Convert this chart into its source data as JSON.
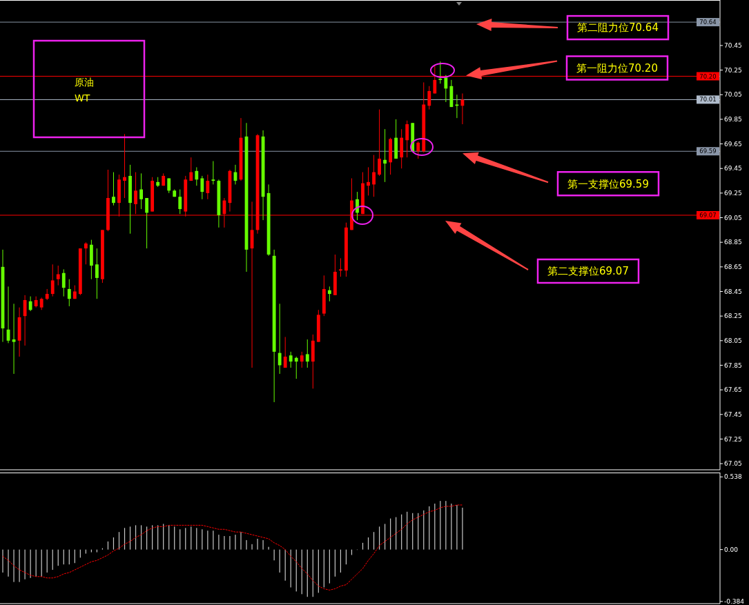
{
  "chart_data": [
    {
      "type": "candlestick",
      "title": "原油",
      "subtitle": "WT",
      "categories": [
        null,
        null,
        null,
        null,
        null,
        null,
        null,
        null,
        null,
        null,
        null,
        null,
        null,
        null,
        null,
        null,
        null,
        null,
        null,
        null,
        null,
        null,
        null,
        null,
        null,
        null,
        null,
        null,
        null,
        null,
        null,
        null,
        null,
        null,
        null,
        null,
        null,
        null,
        null,
        null,
        null,
        null,
        null,
        null,
        null,
        null,
        null,
        null,
        null,
        null,
        null,
        null,
        null,
        null,
        null,
        null,
        null,
        null,
        null,
        null,
        null,
        null,
        null,
        null,
        null,
        null,
        null,
        null,
        null,
        null,
        null,
        null,
        null,
        null,
        null,
        null,
        null,
        null,
        null,
        null,
        null,
        null,
        null,
        null,
        null,
        null,
        null,
        null,
        null,
        null,
        null,
        null,
        null,
        null,
        null,
        null,
        null,
        null,
        null,
        null,
        null,
        null,
        null,
        null,
        null,
        null,
        null,
        null,
        null,
        null,
        null,
        null,
        null,
        null,
        null,
        null,
        null,
        null,
        null,
        null,
        null,
        null,
        null,
        null,
        null,
        null,
        null,
        null,
        null,
        null
      ],
      "ylim": [
        67.0,
        70.82
      ],
      "yticks": [
        67.05,
        67.25,
        67.45,
        67.65,
        67.85,
        68.05,
        68.25,
        68.45,
        68.65,
        68.85,
        69.05,
        69.25,
        69.45,
        69.65,
        69.85,
        70.05,
        70.25,
        70.45
      ],
      "ohlc": [
        [
          68.65,
          68.79,
          68.04,
          68.15
        ],
        [
          68.14,
          68.49,
          68.03,
          68.05
        ],
        [
          68.06,
          68.35,
          67.78,
          68.04
        ],
        [
          68.05,
          68.32,
          67.92,
          68.24
        ],
        [
          68.25,
          68.42,
          68.01,
          68.38
        ],
        [
          68.37,
          68.41,
          68.29,
          68.3
        ],
        [
          68.33,
          68.41,
          68.32,
          68.38
        ],
        [
          68.32,
          68.4,
          68.3,
          68.39
        ],
        [
          68.39,
          68.47,
          68.38,
          68.43
        ],
        [
          68.43,
          68.67,
          68.41,
          68.54
        ],
        [
          68.55,
          68.66,
          68.5,
          68.59
        ],
        [
          68.6,
          68.63,
          68.41,
          68.48
        ],
        [
          68.47,
          68.55,
          68.33,
          68.39
        ],
        [
          68.39,
          68.5,
          68.39,
          68.45
        ],
        [
          68.43,
          68.8,
          68.42,
          68.8
        ],
        [
          68.8,
          68.85,
          68.67,
          68.84
        ],
        [
          68.83,
          68.87,
          68.55,
          68.66
        ],
        [
          68.67,
          68.8,
          68.39,
          68.56
        ],
        [
          68.55,
          68.95,
          68.52,
          68.95
        ],
        [
          68.95,
          69.44,
          68.94,
          69.21
        ],
        [
          69.22,
          69.42,
          69.15,
          69.17
        ],
        [
          69.17,
          69.4,
          69.06,
          69.36
        ],
        [
          69.35,
          69.73,
          69.21,
          69.38
        ],
        [
          69.39,
          69.48,
          68.92,
          69.17
        ],
        [
          69.16,
          69.42,
          69.08,
          69.27
        ],
        [
          69.28,
          69.41,
          69.12,
          69.2
        ],
        [
          69.21,
          69.21,
          68.8,
          69.09
        ],
        [
          69.1,
          69.38,
          69.1,
          69.35
        ],
        [
          69.34,
          69.38,
          69.3,
          69.31
        ],
        [
          69.31,
          69.41,
          69.31,
          69.39
        ],
        [
          69.37,
          69.37,
          69.25,
          69.27
        ],
        [
          69.27,
          69.28,
          69.22,
          69.22
        ],
        [
          69.22,
          69.28,
          69.08,
          69.12
        ],
        [
          69.1,
          69.39,
          69.06,
          69.36
        ],
        [
          69.35,
          69.54,
          69.35,
          69.42
        ],
        [
          69.43,
          69.46,
          69.31,
          69.36
        ],
        [
          69.37,
          69.39,
          69.2,
          69.26
        ],
        [
          69.25,
          69.4,
          69.2,
          69.35
        ],
        [
          69.36,
          69.51,
          69.32,
          69.35
        ],
        [
          69.35,
          69.36,
          68.97,
          69.07
        ],
        [
          69.08,
          69.21,
          68.97,
          69.19
        ],
        [
          69.17,
          69.44,
          69.1,
          69.43
        ],
        [
          69.42,
          69.48,
          69.32,
          69.35
        ],
        [
          69.36,
          69.86,
          69.35,
          69.7
        ],
        [
          69.71,
          69.82,
          68.61,
          68.79
        ],
        [
          68.8,
          69.18,
          67.83,
          68.95
        ],
        [
          68.95,
          69.73,
          68.92,
          69.72
        ],
        [
          69.71,
          69.76,
          69.03,
          69.22
        ],
        [
          69.25,
          69.32,
          68.74,
          68.75
        ],
        [
          68.74,
          68.79,
          67.55,
          67.96
        ],
        [
          67.95,
          68.35,
          67.78,
          67.85
        ],
        [
          67.83,
          68.08,
          67.83,
          67.92
        ],
        [
          67.93,
          67.96,
          67.83,
          67.88
        ],
        [
          67.91,
          67.92,
          67.74,
          67.88
        ],
        [
          67.88,
          67.96,
          67.83,
          67.93
        ],
        [
          67.94,
          68.06,
          67.83,
          67.88
        ],
        [
          67.88,
          68.1,
          67.66,
          68.05
        ],
        [
          68.04,
          68.3,
          68.04,
          68.26
        ],
        [
          68.27,
          68.58,
          68.25,
          68.47
        ],
        [
          68.46,
          68.49,
          68.37,
          68.43
        ],
        [
          68.42,
          68.75,
          68.42,
          68.61
        ],
        [
          68.62,
          68.72,
          68.57,
          68.63
        ],
        [
          68.62,
          69.01,
          68.57,
          68.97
        ],
        [
          68.95,
          69.37,
          68.95,
          69.19
        ],
        [
          69.2,
          69.26,
          69.03,
          69.09
        ],
        [
          69.08,
          69.42,
          69.08,
          69.33
        ],
        [
          69.31,
          69.46,
          69.23,
          69.34
        ],
        [
          69.32,
          69.56,
          69.22,
          69.42
        ],
        [
          69.4,
          69.93,
          69.39,
          69.53
        ],
        [
          69.52,
          69.77,
          69.34,
          69.49
        ],
        [
          69.5,
          69.7,
          69.4,
          69.69
        ],
        [
          69.7,
          69.85,
          69.53,
          69.53
        ],
        [
          69.54,
          69.77,
          69.45,
          69.7
        ],
        [
          69.68,
          69.84,
          69.54,
          69.81
        ],
        [
          69.82,
          69.82,
          69.59,
          69.59
        ],
        [
          69.59,
          69.67,
          69.53,
          69.66
        ],
        [
          69.59,
          70.15,
          69.58,
          69.97
        ],
        [
          69.96,
          70.12,
          69.93,
          70.08
        ],
        [
          70.06,
          70.29,
          70.06,
          70.17
        ],
        [
          70.18,
          70.32,
          70.14,
          70.17
        ],
        [
          70.19,
          70.21,
          69.99,
          70.1
        ],
        [
          70.12,
          70.17,
          69.95,
          69.95
        ],
        [
          69.97,
          70.05,
          69.86,
          69.96
        ],
        [
          69.96,
          70.06,
          69.81,
          70.01
        ],
        null,
        null,
        null,
        null,
        null,
        null,
        null,
        null,
        null,
        null,
        null,
        null,
        null,
        null,
        null,
        null,
        null,
        null,
        null,
        null,
        null,
        null,
        null,
        null,
        null,
        null,
        null,
        null,
        null,
        null,
        null,
        null,
        null,
        null,
        null,
        null,
        null,
        null,
        null,
        null,
        null,
        null,
        null,
        null,
        null,
        null
      ],
      "colors": [
        "#66ff00",
        "#66ff00",
        "#66ff00",
        "#ff0000",
        "#ff0000",
        "#66ff00",
        "#ff0000",
        "#ff0000",
        "#ff0000",
        "#ff0000",
        "#ff0000",
        "#66ff00",
        "#66ff00",
        "#ff0000",
        "#ff0000",
        "#ff0000",
        "#66ff00",
        "#66ff00",
        "#ff0000",
        "#ff0000",
        "#66ff00",
        "#ff0000",
        "#ff0000",
        "#66ff00",
        "#ff0000",
        "#66ff00",
        "#66ff00",
        "#ff0000",
        "#66ff00",
        "#ff0000",
        "#66ff00",
        "#66ff00",
        "#66ff00",
        "#ff0000",
        "#ff0000",
        "#66ff00",
        "#66ff00",
        "#ff0000",
        "#66ff00",
        "#66ff00",
        "#ff0000",
        "#ff0000",
        "#66ff00",
        "#ff0000",
        "#66ff00",
        "#ff0000",
        "#ff0000",
        "#66ff00",
        "#66ff00",
        "#66ff00",
        "#66ff00",
        "#ff0000",
        "#66ff00",
        "#66ff00",
        "#ff0000",
        "#66ff00",
        "#ff0000",
        "#ff0000",
        "#ff0000",
        "#66ff00",
        "#ff0000",
        "#ff0000",
        "#ff0000",
        "#ff0000",
        "#66ff00",
        "#ff0000",
        "#ff0000",
        "#ff0000",
        "#ff0000",
        "#66ff00",
        "#ff0000",
        "#66ff00",
        "#ff0000",
        "#ff0000",
        "#66ff00",
        "#ff0000",
        "#ff0000",
        "#ff0000",
        "#ff0000",
        "#66ff00",
        "#66ff00",
        "#66ff00",
        "#66ff00",
        "#ff0000",
        null,
        null,
        null,
        null,
        null,
        null,
        null,
        null,
        null,
        null,
        null,
        null,
        null,
        null,
        null,
        null,
        null,
        null,
        null,
        null,
        null,
        null,
        null,
        null,
        null,
        null,
        null,
        null,
        null,
        null,
        null,
        null,
        null,
        null,
        null,
        null,
        null,
        null,
        null,
        null,
        null,
        null,
        null,
        null,
        null,
        null
      ],
      "ref_lines": [
        {
          "axis": "y",
          "value": 70.64,
          "label": "70.64",
          "color": "#8a96a8"
        },
        {
          "axis": "y",
          "value": 70.2,
          "label": "70.20",
          "color": "#ff0000"
        },
        {
          "axis": "y",
          "value": 70.01,
          "label": "70.01",
          "color": "#b0bccc"
        },
        {
          "axis": "y",
          "value": 69.59,
          "label": "69.59",
          "color": "#8a96a8"
        },
        {
          "axis": "y",
          "value": 69.07,
          "label": "69.07",
          "color": "#ff0000"
        }
      ],
      "annotations": [
        {
          "text": "第二阻力位70.64",
          "y": 70.64
        },
        {
          "text": "第一阻力位70.20",
          "y": 70.2
        },
        {
          "text": "第一支撑位69.59",
          "y": 69.59
        },
        "第二支撑位69.07"
      ]
    },
    {
      "type": "bar",
      "categories": [
        null,
        null,
        null,
        null,
        null,
        null,
        null,
        null,
        null,
        null,
        null,
        null,
        null,
        null,
        null,
        null,
        null,
        null,
        null,
        null,
        null,
        null,
        null,
        null,
        null,
        null,
        null,
        null,
        null,
        null,
        null,
        null,
        null,
        null,
        null,
        null,
        null,
        null,
        null,
        null,
        null,
        null,
        null,
        null,
        null,
        null,
        null,
        null,
        null,
        null,
        null,
        null,
        null,
        null,
        null,
        null,
        null,
        null,
        null,
        null,
        null,
        null,
        null,
        null,
        null,
        null,
        null,
        null,
        null,
        null,
        null,
        null,
        null,
        null,
        null,
        null,
        null,
        null,
        null,
        null,
        null,
        null,
        null,
        null,
        null,
        null,
        null,
        null,
        null,
        null,
        null,
        null,
        null,
        null,
        null,
        null,
        null,
        null,
        null,
        null,
        null,
        null,
        null,
        null,
        null,
        null,
        null,
        null,
        null,
        null,
        null,
        null,
        null,
        null,
        null,
        null,
        null,
        null,
        null,
        null,
        null,
        null,
        null,
        null,
        null,
        null,
        null,
        null,
        null,
        null
      ],
      "ylim": [
        -0.4,
        0.57
      ],
      "yticks": [
        0.538,
        {
          "value": 0,
          "label": "0.00"
        },
        -0.384
      ],
      "series": [
        {
          "color": "#c8c8c8",
          "values": [
            -0.17,
            -0.2,
            -0.24,
            -0.24,
            -0.22,
            -0.21,
            -0.2,
            -0.2,
            -0.17,
            -0.15,
            -0.12,
            -0.11,
            -0.11,
            -0.1,
            -0.06,
            -0.03,
            -0.02,
            -0.02,
            0.01,
            0.06,
            0.09,
            0.13,
            0.16,
            0.17,
            0.18,
            0.18,
            0.17,
            0.18,
            0.18,
            0.19,
            0.18,
            0.17,
            0.15,
            0.16,
            0.17,
            0.16,
            0.15,
            0.14,
            0.14,
            0.11,
            0.1,
            0.1,
            0.11,
            0.13,
            0.07,
            0.04,
            0.08,
            0.07,
            0.02,
            -0.08,
            -0.17,
            -0.23,
            -0.28,
            -0.31,
            -0.33,
            -0.35,
            -0.35,
            -0.32,
            -0.28,
            -0.25,
            -0.2,
            -0.17,
            -0.11,
            -0.04,
            0,
            0.05,
            0.09,
            0.13,
            0.17,
            0.19,
            0.23,
            0.24,
            0.26,
            0.28,
            0.27,
            0.27,
            0.29,
            0.32,
            0.34,
            0.36,
            0.36,
            0.34,
            0.33,
            0.31,
            null,
            null,
            null,
            null,
            null,
            null,
            null,
            null,
            null,
            null,
            null,
            null,
            null,
            null,
            null,
            null,
            null,
            null,
            null,
            null,
            null,
            null,
            null,
            null,
            null,
            null,
            null,
            null,
            null,
            null,
            null,
            null,
            null,
            null,
            null,
            null,
            null,
            null,
            null,
            null,
            null,
            null,
            null,
            null,
            null,
            null
          ]
        },
        {
          "type": "line",
          "color": "#ff0000",
          "line_style": "dotted",
          "values": [
            -0.05,
            -0.08,
            -0.12,
            -0.15,
            -0.17,
            -0.19,
            -0.2,
            -0.2,
            -0.21,
            -0.21,
            -0.2,
            -0.18,
            -0.17,
            -0.15,
            -0.13,
            -0.11,
            -0.09,
            -0.08,
            -0.06,
            -0.04,
            -0.01,
            0.01,
            0.04,
            0.06,
            0.09,
            0.11,
            0.14,
            0.16,
            0.17,
            0.17,
            0.18,
            0.18,
            0.18,
            0.18,
            0.18,
            0.18,
            0.18,
            0.17,
            0.16,
            0.15,
            0.15,
            0.14,
            0.13,
            0.13,
            0.12,
            0.11,
            0.1,
            0.09,
            0.08,
            0.05,
            0.03,
            0,
            -0.05,
            -0.09,
            -0.14,
            -0.18,
            -0.23,
            -0.27,
            -0.29,
            -0.3,
            -0.29,
            -0.27,
            -0.26,
            -0.22,
            -0.18,
            -0.14,
            -0.08,
            -0.03,
            0.03,
            0.06,
            0.09,
            0.12,
            0.15,
            0.19,
            0.22,
            0.24,
            0.26,
            0.28,
            0.29,
            0.31,
            0.32,
            0.32,
            0.33,
            0.33,
            null,
            null,
            null,
            null,
            null,
            null,
            null,
            null,
            null,
            null,
            null,
            null,
            null,
            null,
            null,
            null,
            null,
            null,
            null,
            null,
            null,
            null,
            null,
            null,
            null,
            null,
            null,
            null,
            null,
            null,
            null,
            null,
            null,
            null,
            null,
            null,
            null,
            null,
            null,
            null,
            null,
            null,
            null,
            null,
            null,
            null
          ]
        }
      ]
    }
  ]
}
